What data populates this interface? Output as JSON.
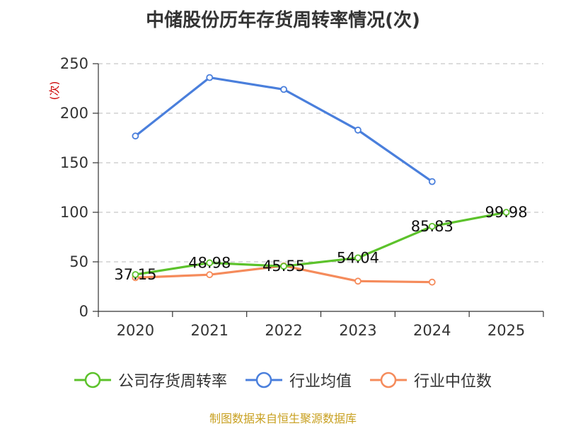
{
  "chart_data": {
    "type": "line",
    "title": "中储股份历年存货周转率情况(次)",
    "ylabel": "(次)",
    "ylim": [
      0,
      250
    ],
    "yticks": [
      0,
      50,
      100,
      150,
      200,
      250
    ],
    "categories": [
      "2020",
      "2021",
      "2022",
      "2023",
      "2024",
      "2025"
    ],
    "grid": true,
    "legend_position": "bottom",
    "series": [
      {
        "name": "公司存货周转率",
        "color": "#5cc22b",
        "values": [
          37.15,
          48.98,
          45.55,
          54.04,
          85.83,
          99.98
        ],
        "labels": [
          "37.15",
          "48.98",
          "45.55",
          "54.04",
          "85.83",
          "99.98"
        ]
      },
      {
        "name": "行业均值",
        "color": "#4a7fdc",
        "values": [
          177,
          236,
          224,
          183,
          131,
          null
        ]
      },
      {
        "name": "行业中位数",
        "color": "#f58b5b",
        "values": [
          34,
          37,
          46,
          30.5,
          29.5,
          null
        ]
      }
    ]
  },
  "colors": {
    "ylabel": "#cc0000",
    "source": "#c8a020"
  },
  "source": "制图数据来自恒生聚源数据库"
}
